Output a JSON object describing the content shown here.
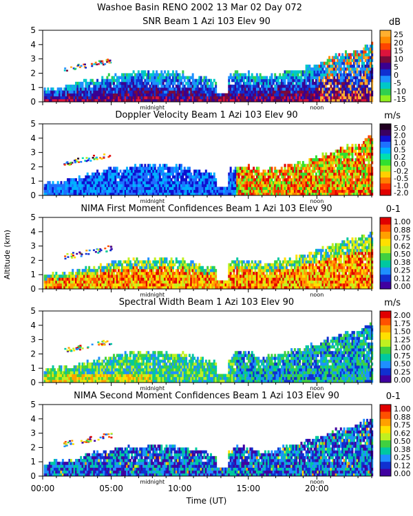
{
  "chart_data": {
    "type": "heatmap",
    "title_line1": "Washoe Basin RENO 2002  13 Mar 02 Day 072",
    "xlabel": "Time (UT)",
    "ylabel": "Altitude (km)",
    "xlim": [
      0,
      24
    ],
    "x_ticks": [
      {
        "value": 0,
        "label": "00:00"
      },
      {
        "value": 5,
        "label": "05:00"
      },
      {
        "value": 10,
        "label": "10:00"
      },
      {
        "value": 15,
        "label": "15:00"
      },
      {
        "value": 20,
        "label": "20:00"
      }
    ],
    "markers": [
      {
        "value": 8.0,
        "label": "midnight"
      },
      {
        "value": 20.0,
        "label": "noon"
      }
    ],
    "ylim": [
      0,
      5
    ],
    "y_ticks": [
      "0",
      "1",
      "2",
      "3",
      "4",
      "5"
    ],
    "panels": [
      {
        "title": "SNR Beam 1 Azi 103 Elev 90",
        "units": "dB",
        "colorbar_labels": [
          "25",
          "20",
          "15",
          "10",
          "5",
          "0",
          "-5",
          "-10",
          "-15"
        ],
        "palette": [
          "#ffb030",
          "#ff8c00",
          "#ff4500",
          "#dc143c",
          "#7a0a3a",
          "#3a0090",
          "#1030d0",
          "#1e90ff",
          "#00c8c8",
          "#30d050",
          "#90f020"
        ]
      },
      {
        "title": "Doppler Velocity Beam 1 Azi 103 Elev 90",
        "units": "m/s",
        "colorbar_labels": [
          "5.0",
          "2.0",
          "1.0",
          "0.5",
          "0.2",
          "0.0",
          "-0.2",
          "-0.5",
          "-1.0",
          "-2.0"
        ],
        "palette": [
          "#200020",
          "#3a0060",
          "#1010d0",
          "#1e70ff",
          "#00b0ff",
          "#00e0b0",
          "#30e030",
          "#a0f020",
          "#ffd000",
          "#ff8000",
          "#ff3000",
          "#e00000"
        ]
      },
      {
        "title": "NIMA First Moment Confidences Beam 1 Azi 103 Elev 90",
        "units": "0-1",
        "colorbar_labels": [
          "1.00",
          "0.88",
          "0.75",
          "0.62",
          "0.50",
          "0.38",
          "0.25",
          "0.12",
          "0.00"
        ],
        "palette": [
          "#e00000",
          "#ff5000",
          "#ffa000",
          "#ffe000",
          "#c0f020",
          "#40d040",
          "#00c8a0",
          "#1e90ff",
          "#1030d0",
          "#4000a0"
        ]
      },
      {
        "title": "Spectral Width Beam 1 Azi 103 Elev 90",
        "units": "m/s",
        "colorbar_labels": [
          "2.00",
          "1.75",
          "1.50",
          "1.25",
          "1.00",
          "0.75",
          "0.50",
          "0.25",
          "0.00"
        ],
        "palette": [
          "#e00000",
          "#ff5000",
          "#ffa000",
          "#ffe000",
          "#c0f020",
          "#40d040",
          "#00c8a0",
          "#1e90ff",
          "#1030d0",
          "#4000a0"
        ]
      },
      {
        "title": "NIMA Second Moment Confidences Beam 1 Azi 103 Elev 90",
        "units": "0-1",
        "colorbar_labels": [
          "1.00",
          "0.88",
          "0.75",
          "0.62",
          "0.50",
          "0.38",
          "0.25",
          "0.12",
          "0.00"
        ],
        "palette": [
          "#e00000",
          "#ff5000",
          "#ffa000",
          "#ffe000",
          "#c0f020",
          "#40d040",
          "#00c8a0",
          "#1e90ff",
          "#1030d0",
          "#4000a0"
        ]
      }
    ],
    "echo_top_km": [
      [
        0,
        0.8
      ],
      [
        1,
        0.9
      ],
      [
        2,
        1.0
      ],
      [
        3,
        1.3
      ],
      [
        4,
        1.6
      ],
      [
        5,
        1.8
      ],
      [
        6,
        1.9
      ],
      [
        7,
        2.0
      ],
      [
        8,
        2.0
      ],
      [
        9,
        2.0
      ],
      [
        10,
        1.9
      ],
      [
        11,
        1.7
      ],
      [
        12,
        1.5
      ],
      [
        13,
        1.1
      ],
      [
        14,
        2.0
      ],
      [
        15,
        1.9
      ],
      [
        16,
        1.6
      ],
      [
        17,
        1.8
      ],
      [
        18,
        2.1
      ],
      [
        19,
        2.3
      ],
      [
        20,
        2.6
      ],
      [
        21,
        3.0
      ],
      [
        22,
        3.3
      ],
      [
        23,
        3.5
      ],
      [
        24,
        4.0
      ]
    ]
  }
}
